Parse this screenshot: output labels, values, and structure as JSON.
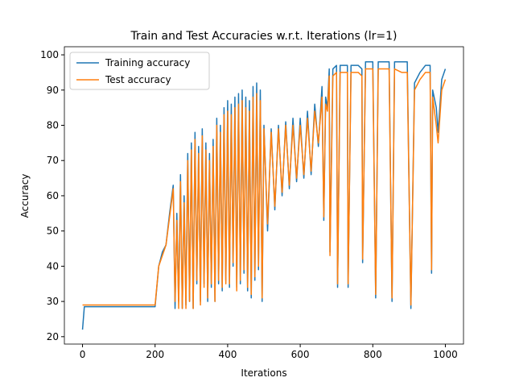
{
  "chart_data": {
    "type": "line",
    "title": "Train and Test Accuracies w.r.t. Iterations (lr=1)",
    "x_label": "Iterations",
    "y_label": "Accuracy",
    "x": [
      0,
      5,
      100,
      200,
      210,
      220,
      230,
      240,
      250,
      255,
      260,
      265,
      270,
      275,
      280,
      285,
      290,
      295,
      300,
      305,
      310,
      315,
      320,
      325,
      330,
      335,
      340,
      345,
      350,
      355,
      360,
      365,
      370,
      375,
      380,
      385,
      390,
      395,
      400,
      405,
      410,
      415,
      420,
      425,
      430,
      435,
      440,
      445,
      450,
      455,
      460,
      465,
      470,
      475,
      480,
      485,
      490,
      495,
      500,
      510,
      520,
      530,
      540,
      550,
      560,
      570,
      580,
      590,
      600,
      610,
      620,
      630,
      640,
      650,
      660,
      665,
      670,
      675,
      680,
      682,
      690,
      700,
      703,
      710,
      720,
      730,
      732,
      740,
      750,
      760,
      770,
      772,
      780,
      790,
      800,
      808,
      815,
      830,
      845,
      853,
      860,
      880,
      895,
      905,
      915,
      930,
      945,
      958,
      962,
      965,
      975,
      980,
      990,
      1000
    ],
    "series": [
      {
        "name": "Training accuracy",
        "color": "#1f77b4",
        "values": [
          22,
          28.5,
          28.5,
          28.5,
          40,
          44,
          46,
          55,
          63,
          28,
          55,
          30,
          66,
          28,
          60,
          29,
          72,
          30,
          75,
          28,
          78,
          35,
          74,
          30,
          79,
          35,
          75,
          30,
          72,
          34,
          76,
          30,
          82,
          35,
          80,
          33,
          85,
          36,
          87,
          34,
          86,
          40,
          88,
          34,
          89,
          35,
          90,
          38,
          88,
          33,
          87,
          31,
          91,
          36,
          92,
          39,
          90,
          30,
          80,
          50,
          79,
          56,
          80,
          60,
          81,
          62,
          82,
          64,
          82,
          65,
          84,
          66,
          86,
          74,
          91,
          53,
          88,
          85,
          96,
          44,
          96,
          97,
          34,
          97,
          97,
          97,
          34,
          97,
          97,
          97,
          96,
          41,
          98,
          98,
          98,
          31,
          98,
          98,
          98,
          30,
          98,
          98,
          98,
          28,
          92,
          95,
          97,
          97,
          38,
          90,
          85,
          78,
          93,
          96
        ]
      },
      {
        "name": "Test accuracy",
        "color": "#ff7f0e",
        "values": [
          29,
          29,
          29,
          29,
          40,
          43,
          46,
          54,
          62,
          30,
          53,
          28,
          64,
          28,
          58,
          28,
          70,
          30,
          73,
          28,
          76,
          36,
          72,
          29,
          77,
          34,
          73,
          31,
          70,
          35,
          74,
          30,
          80,
          36,
          78,
          34,
          83,
          35,
          84,
          35,
          83,
          41,
          85,
          33,
          86,
          36,
          87,
          39,
          85,
          34,
          84,
          32,
          88,
          37,
          89,
          40,
          87,
          31,
          79,
          52,
          78,
          57,
          79,
          61,
          80,
          63,
          80,
          65,
          80,
          66,
          82,
          67,
          84,
          75,
          88,
          54,
          86,
          84,
          94,
          43,
          94,
          95,
          35,
          95,
          95,
          95,
          35,
          95,
          95,
          95,
          94,
          42,
          96,
          96,
          96,
          32,
          96,
          96,
          96,
          31,
          96,
          95,
          95,
          29,
          90,
          93,
          95,
          95,
          39,
          88,
          80,
          75,
          90,
          93
        ]
      }
    ],
    "xlim": [
      -50,
      1050
    ],
    "ylim": [
      17.9,
      102.3
    ],
    "xticks": [
      0,
      200,
      400,
      600,
      800,
      1000
    ],
    "yticks": [
      20,
      30,
      40,
      50,
      60,
      70,
      80,
      90,
      100
    ],
    "legend": "upper left"
  }
}
